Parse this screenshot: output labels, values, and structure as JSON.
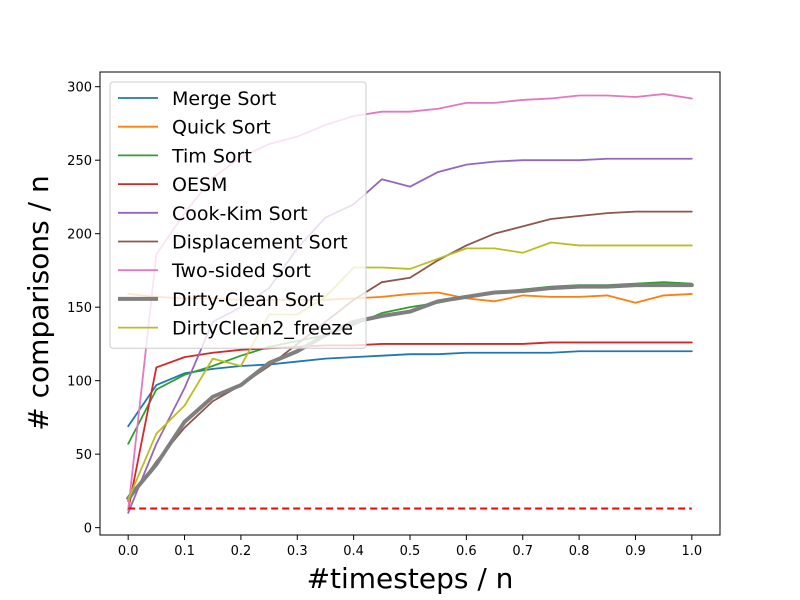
{
  "chart_data": {
    "type": "line",
    "title": "",
    "xlabel": "#timesteps / n",
    "ylabel": "# comparisons / n",
    "xlim": [
      -0.05,
      1.05
    ],
    "ylim": [
      -5,
      310
    ],
    "xticks": [
      0.0,
      0.1,
      0.2,
      0.3,
      0.4,
      0.5,
      0.6,
      0.7,
      0.8,
      0.9,
      1.0
    ],
    "xtick_labels": [
      "0.0",
      "0.1",
      "0.2",
      "0.3",
      "0.4",
      "0.5",
      "0.6",
      "0.7",
      "0.8",
      "0.9",
      "1.0"
    ],
    "yticks": [
      0,
      50,
      100,
      150,
      200,
      250,
      300
    ],
    "ytick_labels": [
      "0",
      "50",
      "100",
      "150",
      "200",
      "250",
      "300"
    ],
    "grid": false,
    "legend_position": "top-left",
    "x": [
      0.0,
      0.05,
      0.1,
      0.15,
      0.2,
      0.25,
      0.3,
      0.35,
      0.4,
      0.45,
      0.5,
      0.55,
      0.6,
      0.65,
      0.7,
      0.75,
      0.8,
      0.85,
      0.9,
      0.95,
      1.0
    ],
    "series": [
      {
        "name": "Merge Sort",
        "color": "#1f77b4",
        "width": 1.8,
        "values": [
          69,
          97,
          105,
          108,
          110,
          111,
          113,
          115,
          116,
          117,
          118,
          118,
          119,
          119,
          119,
          119,
          120,
          120,
          120,
          120,
          120
        ]
      },
      {
        "name": "Quick Sort",
        "color": "#ff7f0e",
        "width": 1.8,
        "values": [
          159,
          157,
          156,
          156,
          155,
          155,
          155,
          155,
          156,
          157,
          159,
          160,
          156,
          154,
          158,
          157,
          157,
          158,
          153,
          158,
          159
        ]
      },
      {
        "name": "Tim Sort",
        "color": "#2ca02c",
        "width": 1.8,
        "values": [
          57,
          94,
          104,
          110,
          117,
          123,
          127,
          131,
          138,
          146,
          150,
          153,
          157,
          160,
          162,
          164,
          165,
          165,
          166,
          167,
          166
        ]
      },
      {
        "name": "OESM",
        "color": "#d62728",
        "width": 1.8,
        "values": [
          12,
          109,
          116,
          119,
          121,
          122,
          123,
          124,
          124,
          125,
          125,
          125,
          125,
          125,
          125,
          126,
          126,
          126,
          126,
          126,
          126
        ]
      },
      {
        "name": "Cook-Kim Sort",
        "color": "#9467bd",
        "width": 1.8,
        "values": [
          10,
          57,
          95,
          140,
          150,
          163,
          190,
          211,
          220,
          237,
          232,
          242,
          247,
          249,
          250,
          250,
          250,
          251,
          251,
          251,
          251
        ]
      },
      {
        "name": "Displacement Sort",
        "color": "#8c564b",
        "width": 1.8,
        "values": [
          18,
          45,
          68,
          86,
          97,
          110,
          125,
          140,
          155,
          167,
          170,
          182,
          192,
          200,
          205,
          210,
          212,
          214,
          215,
          215,
          215
        ]
      },
      {
        "name": "Two-sided Sort",
        "color": "#e377c2",
        "width": 1.8,
        "values": [
          12,
          186,
          214,
          238,
          252,
          261,
          266,
          274,
          280,
          283,
          283,
          285,
          289,
          289,
          291,
          292,
          294,
          294,
          293,
          295,
          292
        ]
      },
      {
        "name": "Dirty-Clean Sort",
        "color": "#7f7f7f",
        "width": 4,
        "values": [
          20,
          43,
          72,
          89,
          97,
          112,
          120,
          131,
          140,
          144,
          147,
          154,
          157,
          160,
          161,
          163,
          164,
          164,
          165,
          165,
          165
        ]
      },
      {
        "name": "DirtyClean2_freeze",
        "color": "#bcbd22",
        "width": 1.8,
        "values": [
          19,
          64,
          83,
          115,
          110,
          145,
          145,
          157,
          177,
          177,
          176,
          183,
          190,
          190,
          187,
          194,
          192,
          192,
          192,
          192,
          192
        ]
      }
    ],
    "reference_line": {
      "y": 13,
      "x": [
        0.0,
        1.0
      ],
      "color": "#ff0000",
      "dashed": true
    }
  }
}
